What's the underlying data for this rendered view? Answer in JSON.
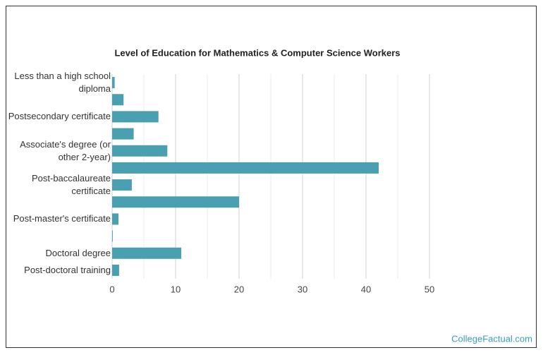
{
  "chart_data": {
    "type": "bar",
    "orientation": "horizontal",
    "title": "Level of Education for Mathematics & Computer Science Workers",
    "categories": [
      "Less than a high school diploma",
      null,
      "Postsecondary certificate",
      null,
      "Associate's degree (or other 2-year)",
      null,
      "Post-baccalaureate certificate",
      null,
      "Post-master's certificate",
      null,
      "Doctoral degree",
      "Post-doctoral training"
    ],
    "values": [
      0.4,
      1.8,
      7.3,
      3.4,
      8.7,
      42,
      3.1,
      20,
      1.0,
      0.1,
      10.9,
      1.1
    ],
    "color": "#4a9fb0",
    "xlim": [
      0,
      50
    ],
    "xticks": [
      0,
      10,
      20,
      30,
      40,
      50
    ],
    "minor_xticks": [
      5,
      15,
      25,
      35,
      45
    ],
    "grid": true,
    "source": "CollegeFactual.com"
  }
}
